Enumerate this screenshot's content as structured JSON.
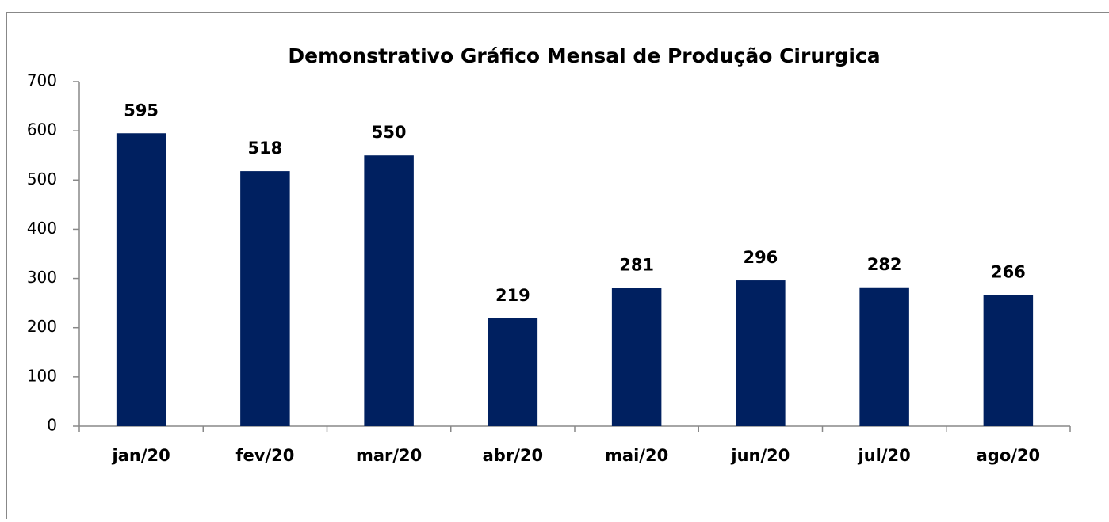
{
  "chart_data": {
    "type": "bar",
    "title": "Demonstrativo Gráfico Mensal de Produção Cirurgica",
    "categories": [
      "jan/20",
      "fev/20",
      "mar/20",
      "abr/20",
      "mai/20",
      "jun/20",
      "jul/20",
      "ago/20"
    ],
    "values": [
      595,
      518,
      550,
      219,
      281,
      296,
      282,
      266
    ],
    "color": "#002060",
    "ylim": [
      0,
      700
    ],
    "yticks": [
      0,
      100,
      200,
      300,
      400,
      500,
      600,
      700
    ],
    "grid": false
  }
}
